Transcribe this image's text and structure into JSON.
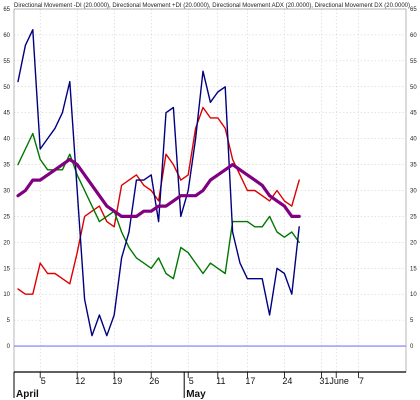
{
  "chart_data": {
    "type": "line",
    "title": "Directional Movement -DI (20.0000), Directional Movement +DI (20.0000), Directional Movement ADX (20.0000), Directional Movement DX (20.0000)",
    "ylim": [
      -5,
      65
    ],
    "y_ticks": [
      0,
      5,
      10,
      15,
      20,
      25,
      30,
      35,
      40,
      45,
      50,
      55,
      60,
      65
    ],
    "x_ticks": [
      {
        "label": "5",
        "x": 3
      },
      {
        "label": "12",
        "x": 8
      },
      {
        "label": "19",
        "x": 13
      },
      {
        "label": "26",
        "x": 18
      },
      {
        "label": "5",
        "x": 23
      },
      {
        "label": "11",
        "x": 27
      },
      {
        "label": "17",
        "x": 31
      },
      {
        "label": "24",
        "x": 36
      },
      {
        "label": "31",
        "x": 41
      },
      {
        "label": "June",
        "x": 43
      },
      {
        "label": "7",
        "x": 46
      }
    ],
    "month_labels": [
      {
        "label": "April",
        "x": 0
      },
      {
        "label": "May",
        "x": 23
      }
    ],
    "baseline": 0,
    "series": [
      {
        "color": "#dd0000",
        "width": 1.4,
        "values": [
          11,
          10,
          10,
          16,
          14,
          14,
          13,
          12,
          18,
          25,
          26,
          27,
          24,
          23,
          31,
          32,
          33,
          31,
          30,
          28,
          37,
          35,
          32,
          33,
          42,
          46,
          44,
          44,
          42,
          36,
          33,
          30,
          30,
          29,
          28,
          30,
          28,
          27,
          32
        ]
      },
      {
        "color": "#007700",
        "width": 1.4,
        "values": [
          35,
          38,
          41,
          36,
          34,
          34,
          34,
          37,
          33,
          30,
          27,
          24,
          25,
          26,
          22,
          19,
          17,
          16,
          15,
          17,
          14,
          13,
          19,
          18,
          16,
          14,
          16,
          15,
          14,
          24,
          24,
          24,
          23,
          23,
          25,
          22,
          21,
          22,
          20
        ]
      },
      {
        "color": "#000080",
        "width": 1.4,
        "values": [
          51,
          58,
          61,
          38,
          40,
          42,
          45,
          51,
          30,
          9,
          2,
          6,
          2,
          6,
          17,
          22,
          32,
          32,
          33,
          24,
          45,
          46,
          25,
          30,
          40,
          53,
          47,
          49,
          50,
          22,
          16,
          13,
          13,
          13,
          6,
          15,
          14,
          10,
          23
        ]
      },
      {
        "color": "#800080",
        "width": 3.2,
        "values": [
          29,
          30,
          32,
          32,
          33,
          34,
          35,
          36,
          35,
          33,
          31,
          29,
          27,
          26,
          25,
          25,
          25,
          26,
          26,
          27,
          27,
          28,
          29,
          29,
          29,
          30,
          32,
          33,
          34,
          35,
          34,
          33,
          32,
          31,
          29,
          28,
          27,
          25,
          25
        ]
      }
    ]
  }
}
